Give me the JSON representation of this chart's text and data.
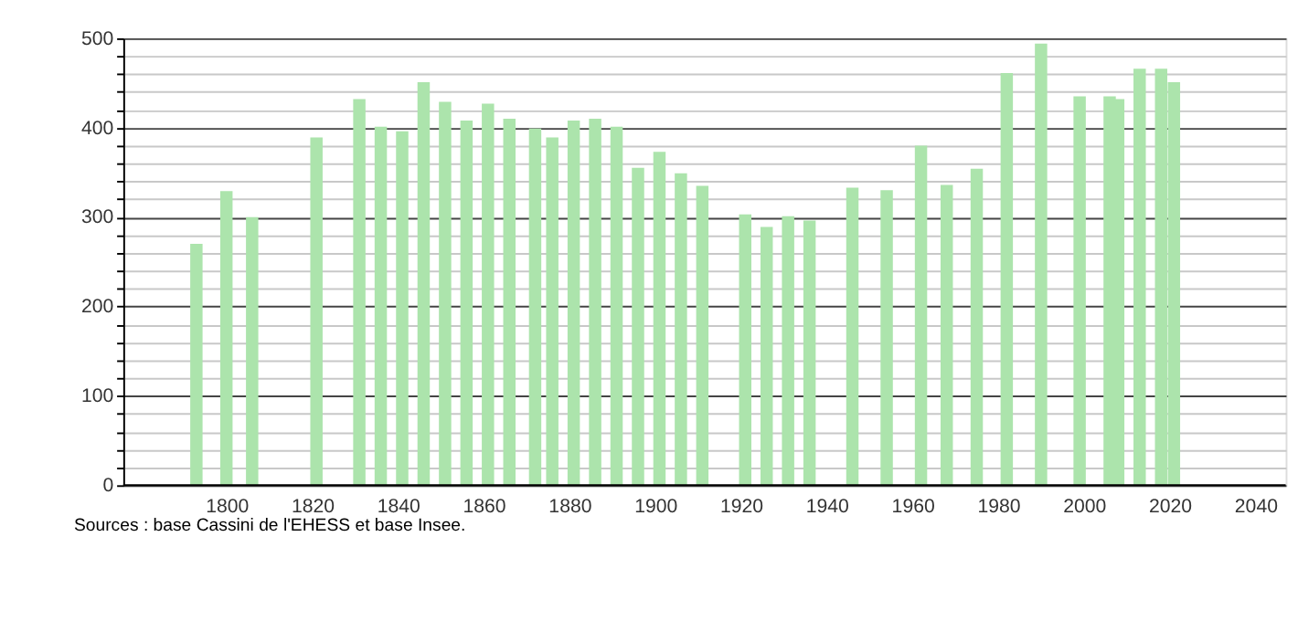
{
  "chart_data": {
    "type": "bar",
    "x": [
      1793,
      1800,
      1806,
      1821,
      1831,
      1836,
      1841,
      1846,
      1851,
      1856,
      1861,
      1866,
      1872,
      1876,
      1881,
      1886,
      1891,
      1896,
      1901,
      1906,
      1911,
      1921,
      1926,
      1931,
      1936,
      1946,
      1954,
      1962,
      1968,
      1975,
      1982,
      1990,
      1999,
      2006,
      2008,
      2013,
      2018,
      2021
    ],
    "values": [
      270,
      329,
      300,
      389,
      432,
      401,
      396,
      451,
      429,
      408,
      427,
      410,
      399,
      389,
      408,
      410,
      401,
      355,
      373,
      349,
      335,
      303,
      289,
      301,
      296,
      333,
      330,
      380,
      336,
      354,
      461,
      494,
      435,
      435,
      432,
      466,
      466,
      451
    ],
    "color": "#ace4ac",
    "xlim": [
      1778,
      2045
    ],
    "xticks": [
      1800,
      1820,
      1840,
      1860,
      1880,
      1900,
      1920,
      1940,
      1960,
      1980,
      2000,
      2020,
      2040
    ],
    "ylim": [
      0,
      500
    ],
    "yticks": [
      0,
      {
        "value": 20,
        "label": null
      },
      {
        "value": 40,
        "label": null
      },
      {
        "value": 60,
        "label": null
      },
      {
        "value": 80,
        "label": null
      },
      100,
      {
        "value": 120,
        "label": null
      },
      {
        "value": 140,
        "label": null
      },
      {
        "value": 160,
        "label": null
      },
      {
        "value": 180,
        "label": null
      },
      200,
      {
        "value": 220,
        "label": null
      },
      {
        "value": 240,
        "label": null
      },
      {
        "value": 260,
        "label": null
      },
      {
        "value": 280,
        "label": null
      },
      300,
      {
        "value": 320,
        "label": null
      },
      {
        "value": 340,
        "label": null
      },
      {
        "value": 360,
        "label": null
      },
      {
        "value": 380,
        "label": null
      },
      400,
      {
        "value": 420,
        "label": null
      },
      {
        "value": 440,
        "label": null
      },
      {
        "value": 460,
        "label": null
      },
      {
        "value": 480,
        "label": null
      },
      500
    ],
    "grid": "y",
    "annotations": [
      "Sources : base Cassini de l'EHESS et base Insee."
    ]
  }
}
